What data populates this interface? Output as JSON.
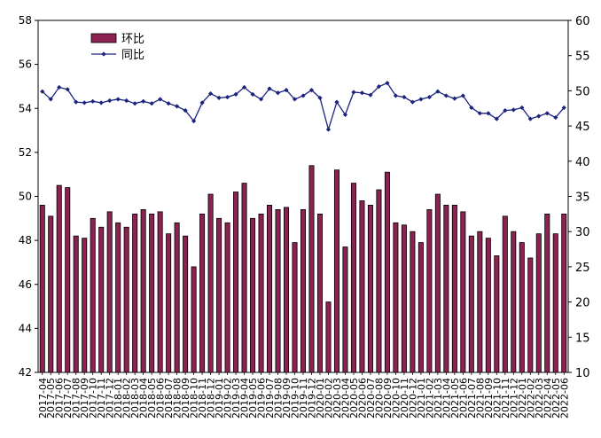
{
  "chart_data": {
    "type": "bar+line",
    "categories": [
      "2017-04",
      "2017-05",
      "2017-06",
      "2017-07",
      "2017-08",
      "2017-09",
      "2017-10",
      "2017-11",
      "2017-12",
      "2018-01",
      "2018-02",
      "2018-03",
      "2018-04",
      "2018-05",
      "2018-06",
      "2018-07",
      "2018-08",
      "2018-09",
      "2018-10",
      "2018-11",
      "2018-12",
      "2019-01",
      "2019-02",
      "2019-03",
      "2019-04",
      "2019-05",
      "2019-06",
      "2019-07",
      "2019-08",
      "2019-09",
      "2019-10",
      "2019-11",
      "2019-12",
      "2020-01",
      "2020-02",
      "2020-03",
      "2020-04",
      "2020-05",
      "2020-06",
      "2020-07",
      "2020-08",
      "2020-09",
      "2020-10",
      "2020-11",
      "2020-12",
      "2021-01",
      "2021-02",
      "2021-03",
      "2021-04",
      "2021-05",
      "2021-06",
      "2021-07",
      "2021-08",
      "2021-09",
      "2021-10",
      "2021-11",
      "2021-12",
      "2022-01",
      "2022-02",
      "2022-03",
      "2022-04",
      "2022-05",
      "2022-06"
    ],
    "tick_labels": [
      "2017-04",
      "2017-05",
      "2017-06",
      "2017-07",
      "2017-08",
      "2017-09",
      "2017-10",
      "2017-11",
      "2017-12",
      "2018-01",
      "2018-02",
      "2018-03",
      "2018-04",
      "2018-05",
      "2018-06",
      "2018-07",
      "2018-08",
      "2018-09",
      "2018-10",
      "2018-11",
      "2018-12",
      "2019-01",
      "2019-02",
      "2019-03",
      "2019-04",
      "2019-05",
      "2019-06",
      "2019-07",
      "2019-08",
      "2019-09",
      "2019-10",
      "2019-11",
      "2019-12",
      "2020-01",
      "2020-02",
      "2020-03",
      "2020-04",
      "2020-05",
      "2020-06",
      "2020-07",
      "2020-08",
      "2020-09",
      "2020-10",
      "2020-11",
      "2020-12",
      "2021-01",
      "2021-02",
      "2021-03",
      "2021-04",
      "2021-05",
      "2021-06",
      "2021-07",
      "2021-08",
      "2021-09",
      "2021-10",
      "2021-11",
      "2021-12",
      "2022-01",
      "2022-02",
      "2022-03",
      "2022-04",
      "2022-05",
      "2022-06"
    ],
    "series": [
      {
        "name": "环比",
        "type": "bar",
        "axis": "left",
        "color": "#8B2252",
        "values": [
          49.6,
          49.1,
          50.5,
          50.4,
          48.2,
          48.1,
          49.0,
          48.6,
          49.3,
          48.8,
          48.6,
          49.2,
          49.4,
          49.2,
          49.3,
          48.3,
          48.8,
          48.2,
          46.8,
          49.2,
          50.1,
          49.0,
          48.8,
          50.2,
          50.6,
          49.0,
          49.2,
          49.6,
          49.4,
          49.5,
          47.9,
          49.4,
          51.4,
          49.2,
          45.2,
          51.2,
          47.7,
          50.6,
          49.8,
          49.6,
          50.3,
          51.1,
          48.8,
          48.7,
          48.4,
          47.9,
          49.4,
          50.1,
          49.6,
          49.6,
          49.3,
          48.2,
          48.4,
          48.1,
          47.3,
          49.1,
          48.4,
          47.9,
          47.2,
          48.3,
          49.2,
          48.3,
          49.2
        ]
      },
      {
        "name": "同比",
        "type": "line",
        "axis": "right",
        "color": "#1a237e",
        "values": [
          49.9,
          48.8,
          50.5,
          50.2,
          48.4,
          48.3,
          48.5,
          48.3,
          48.6,
          48.8,
          48.6,
          48.2,
          48.5,
          48.2,
          48.8,
          48.2,
          47.8,
          47.2,
          45.7,
          48.3,
          49.6,
          49.0,
          49.1,
          49.5,
          50.5,
          49.5,
          48.8,
          50.3,
          49.7,
          50.1,
          48.8,
          49.3,
          50.1,
          49.0,
          44.5,
          48.4,
          46.6,
          49.8,
          49.7,
          49.4,
          50.6,
          51.1,
          49.3,
          49.1,
          48.4,
          48.8,
          49.1,
          49.9,
          49.3,
          48.9,
          49.3,
          47.6,
          46.8,
          46.8,
          46.0,
          47.2,
          47.3,
          47.6,
          46.0,
          46.4,
          46.8,
          46.2,
          47.6
        ]
      }
    ],
    "y_left": {
      "min": 42,
      "max": 58,
      "ticks": [
        42,
        44,
        46,
        48,
        50,
        52,
        54,
        56,
        58
      ]
    },
    "y_right": {
      "min": 10,
      "max": 60,
      "ticks": [
        10,
        15,
        20,
        25,
        30,
        35,
        40,
        45,
        50,
        55,
        60
      ]
    },
    "title": "",
    "xlabel": "",
    "ylabel": "",
    "grid": false,
    "legend": "top-left"
  }
}
